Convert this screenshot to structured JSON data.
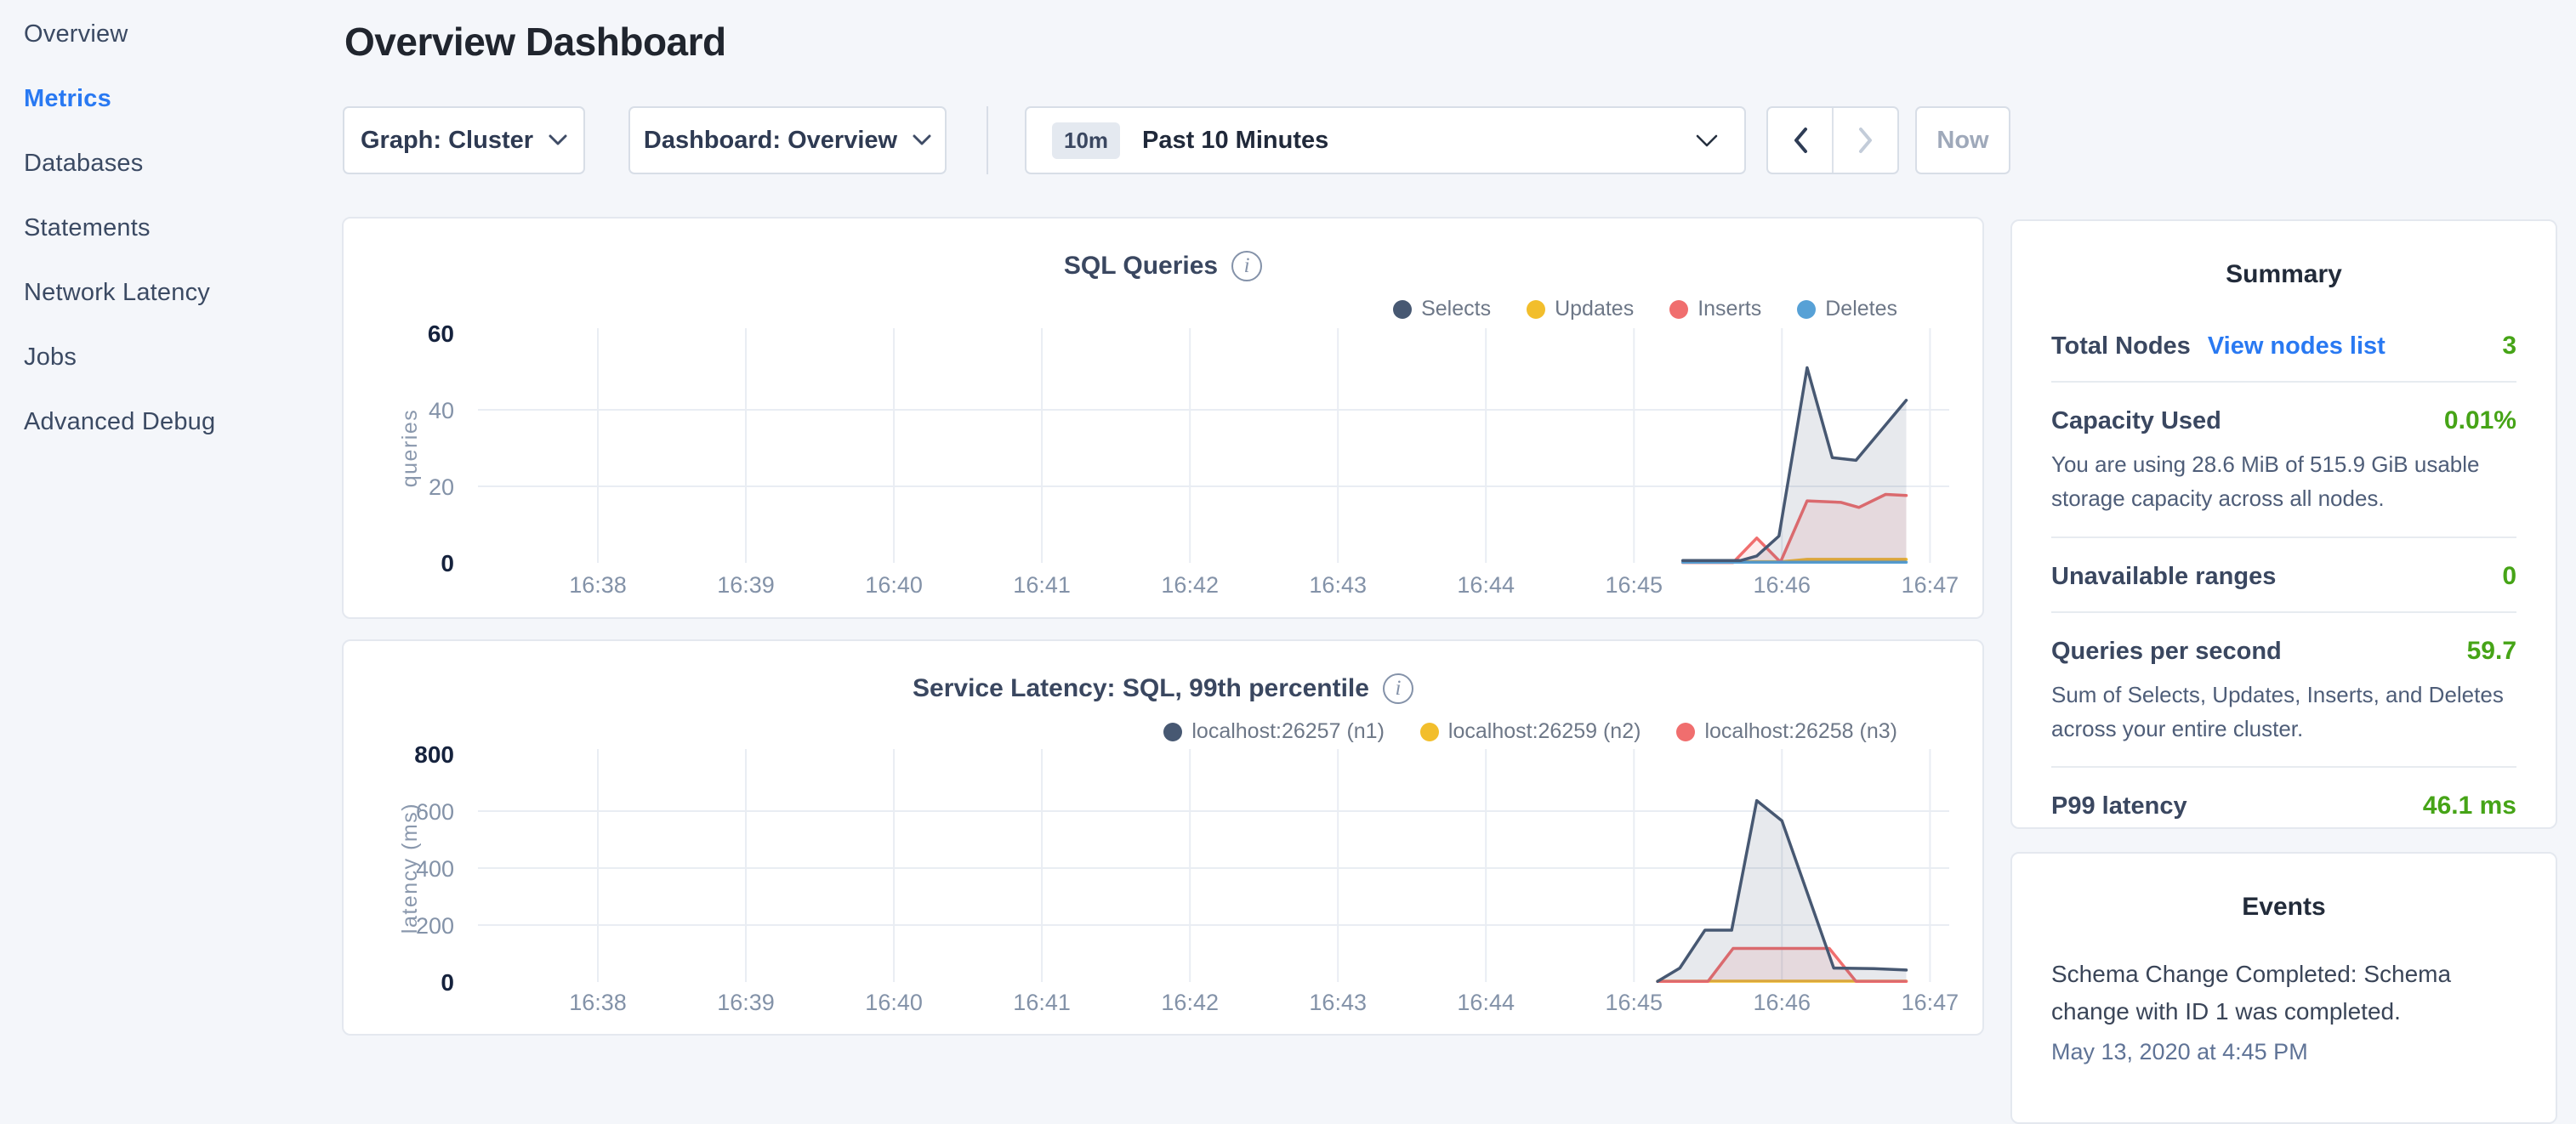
{
  "sidebar": {
    "items": [
      {
        "label": "Overview"
      },
      {
        "label": "Metrics"
      },
      {
        "label": "Databases"
      },
      {
        "label": "Statements"
      },
      {
        "label": "Network Latency"
      },
      {
        "label": "Jobs"
      },
      {
        "label": "Advanced Debug"
      }
    ]
  },
  "header": {
    "title": "Overview Dashboard"
  },
  "controls": {
    "graph_dropdown": "Graph: Cluster",
    "dashboard_dropdown": "Dashboard: Overview",
    "time_range_badge": "10m",
    "time_range_label": "Past 10 Minutes",
    "now_button": "Now"
  },
  "icons": {
    "info": "i"
  },
  "colors": {
    "accent_blue": "#2979f2",
    "value_green": "#46a417",
    "series_navy": "#475872",
    "series_yellow": "#f2be2c",
    "series_red": "#f06e6e",
    "series_blue": "#57a1d6"
  },
  "summary": {
    "title": "Summary",
    "rows": [
      {
        "label": "Total Nodes",
        "link": "View nodes list",
        "value": "3",
        "desc": ""
      },
      {
        "label": "Capacity Used",
        "link": "",
        "value": "0.01%",
        "desc": "You are using 28.6 MiB of 515.9 GiB usable storage capacity across all nodes."
      },
      {
        "label": "Unavailable ranges",
        "link": "",
        "value": "0",
        "desc": ""
      },
      {
        "label": "Queries per second",
        "link": "",
        "value": "59.7",
        "desc": "Sum of Selects, Updates, Inserts, and Deletes across your entire cluster."
      },
      {
        "label": "P99 latency",
        "link": "",
        "value": "46.1 ms",
        "desc": ""
      }
    ]
  },
  "events": {
    "title": "Events",
    "items": [
      {
        "text": "Schema Change Completed: Schema change with ID 1 was completed.",
        "time": "May 13, 2020 at 4:45 PM"
      }
    ]
  },
  "chart_data": [
    {
      "type": "area",
      "title": "SQL Queries",
      "ylabel": "queries",
      "ylim": [
        0,
        60
      ],
      "yticks": [
        0,
        20,
        40,
        60
      ],
      "xticks": {
        "minutes": [
          0,
          1,
          2,
          3,
          4,
          5,
          6,
          7,
          8,
          9
        ],
        "labels": [
          "16:38",
          "16:39",
          "16:40",
          "16:41",
          "16:42",
          "16:43",
          "16:44",
          "16:45",
          "16:46",
          "16:47"
        ]
      },
      "xdomain": [
        -0.81,
        9.13
      ],
      "grid": true,
      "legend_position": "top-right",
      "series": [
        {
          "name": "Selects",
          "color": "#475872",
          "fill": "rgba(71,88,114,0.13)",
          "points": [
            [
              7.33,
              0.6
            ],
            [
              7.72,
              0.6
            ],
            [
              7.83,
              1.8
            ],
            [
              7.98,
              7
            ],
            [
              8.17,
              51
            ],
            [
              8.34,
              27.5
            ],
            [
              8.5,
              26.8
            ],
            [
              8.84,
              42.5
            ]
          ]
        },
        {
          "name": "Updates",
          "color": "#f2be2c",
          "fill": "rgba(242,190,44,0.12)",
          "points": [
            [
              7.33,
              0.3
            ],
            [
              8.0,
              0.3
            ],
            [
              8.17,
              0.9
            ],
            [
              8.84,
              0.9
            ]
          ]
        },
        {
          "name": "Inserts",
          "color": "#f06e6e",
          "fill": "rgba(240,110,110,0.12)",
          "points": [
            [
              7.33,
              0.1
            ],
            [
              7.67,
              0.1
            ],
            [
              7.83,
              6.5
            ],
            [
              7.99,
              0.2
            ],
            [
              8.17,
              16.2
            ],
            [
              8.4,
              15.8
            ],
            [
              8.52,
              14.5
            ],
            [
              8.7,
              17.9
            ],
            [
              8.84,
              17.6
            ]
          ]
        },
        {
          "name": "Deletes",
          "color": "#57a1d6",
          "fill": "rgba(87,161,214,0.12)",
          "points": [
            [
              7.33,
              0.15
            ],
            [
              8.84,
              0.15
            ]
          ]
        }
      ]
    },
    {
      "type": "area",
      "title": "Service Latency: SQL, 99th percentile",
      "ylabel": "latency (ms)",
      "ylim": [
        0,
        800
      ],
      "yticks": [
        0,
        200,
        400,
        600,
        800
      ],
      "xticks": {
        "minutes": [
          0,
          1,
          2,
          3,
          4,
          5,
          6,
          7,
          8,
          9
        ],
        "labels": [
          "16:38",
          "16:39",
          "16:40",
          "16:41",
          "16:42",
          "16:43",
          "16:44",
          "16:45",
          "16:46",
          "16:47"
        ]
      },
      "xdomain": [
        -0.81,
        9.13
      ],
      "grid": true,
      "legend_position": "top-right",
      "series": [
        {
          "name": "localhost:26257 (n1)",
          "color": "#475872",
          "fill": "rgba(71,88,114,0.13)",
          "points": [
            [
              7.16,
              2
            ],
            [
              7.31,
              49
            ],
            [
              7.48,
              182
            ],
            [
              7.66,
              182
            ],
            [
              7.83,
              637
            ],
            [
              8.0,
              566
            ],
            [
              8.35,
              49
            ],
            [
              8.62,
              47
            ],
            [
              8.84,
              42
            ]
          ]
        },
        {
          "name": "localhost:26259 (n2)",
          "color": "#f2be2c",
          "fill": "rgba(242,190,44,0.12)",
          "points": [
            [
              7.16,
              3
            ],
            [
              8.84,
              3
            ]
          ]
        },
        {
          "name": "localhost:26258 (n3)",
          "color": "#f06e6e",
          "fill": "rgba(240,110,110,0.12)",
          "points": [
            [
              7.16,
              2
            ],
            [
              7.5,
              2
            ],
            [
              7.67,
              118
            ],
            [
              8.32,
              118
            ],
            [
              8.5,
              2
            ],
            [
              8.84,
              2
            ]
          ]
        }
      ]
    }
  ]
}
